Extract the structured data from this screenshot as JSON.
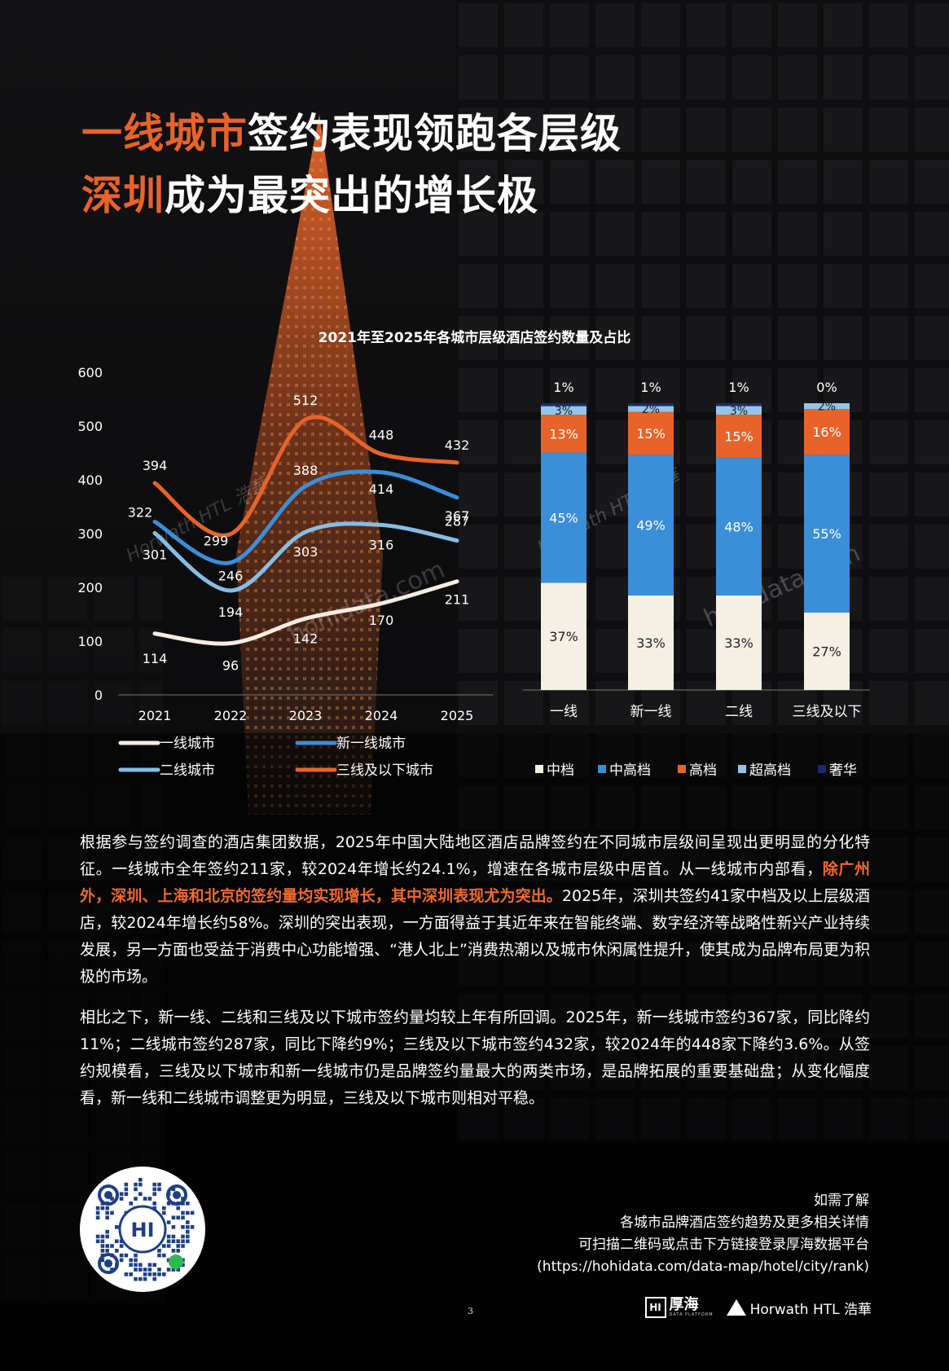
{
  "title": {
    "line1_highlight": "一线城市",
    "line1_rest": "签约表现领跑各层级",
    "line2_highlight": "深圳",
    "line2_rest": "成为最突出的增长极"
  },
  "colors": {
    "accent": "#e8632a",
    "background": "#0b0b0c"
  },
  "chart_data": [
    {
      "type": "line",
      "title": "2021年至2025年各城市层级酒店签约数量及占比",
      "x": [
        "2021",
        "2022",
        "2023",
        "2024",
        "2025"
      ],
      "ylim": [
        0,
        600
      ],
      "yticks": [
        "0",
        "100",
        "200",
        "300",
        "400",
        "500",
        "600"
      ],
      "series": [
        {
          "name": "一线城市",
          "color": "#f5ede0",
          "values": [
            114,
            96,
            142,
            170,
            211
          ]
        },
        {
          "name": "新一线城市",
          "color": "#3b8ed8",
          "values": [
            322,
            246,
            388,
            414,
            367
          ]
        },
        {
          "name": "二线城市",
          "color": "#86bde6",
          "values": [
            301,
            194,
            303,
            316,
            287
          ]
        },
        {
          "name": "三线及以下城市",
          "color": "#e8632a",
          "values": [
            394,
            299,
            512,
            448,
            432
          ]
        }
      ],
      "legend_position": "bottom"
    },
    {
      "type": "bar",
      "stacked": true,
      "categories": [
        "一线",
        "新一线",
        "二线",
        "三线及以下"
      ],
      "series": [
        {
          "name": "中档",
          "color": "#f5efe4",
          "values": [
            37,
            33,
            33,
            27
          ],
          "labels": [
            "37%",
            "33%",
            "33%",
            "27%"
          ]
        },
        {
          "name": "中高档",
          "color": "#3b8ed8",
          "values": [
            45,
            49,
            48,
            55
          ],
          "labels": [
            "45%",
            "49%",
            "48%",
            "55%"
          ]
        },
        {
          "name": "高档",
          "color": "#e8632a",
          "values": [
            13,
            15,
            15,
            16
          ],
          "labels": [
            "13%",
            "15%",
            "15%",
            "16%"
          ]
        },
        {
          "name": "超高档",
          "color": "#93c5ea",
          "values": [
            3,
            2,
            3,
            2
          ],
          "labels": [
            "3%",
            "2%",
            "3%",
            "2%"
          ]
        },
        {
          "name": "奢华",
          "color": "#1d2a6e",
          "values": [
            1,
            1,
            1,
            0
          ],
          "labels": [
            "1%",
            "1%",
            "1%",
            "0%"
          ]
        }
      ],
      "legend_position": "bottom"
    }
  ],
  "body": {
    "p1_a": "根据参与签约调查的酒店集团数据，2025年中国大陆地区酒店品牌签约在不同城市层级间呈现出更明显的分化特征。一线城市全年签约211家，较2024年增长约24.1%，增速在各城市层级中居首。从一线城市内部看，",
    "p1_highlight": "除广州外，深圳、上海和北京的签约量均实现增长，其中深圳表现尤为突出。",
    "p1_b": "2025年，深圳共签约41家中档及以上层级酒店，较2024年增长约58%。深圳的突出表现，一方面得益于其近年来在智能终端、数字经济等战略性新兴产业持续发展，另一方面也受益于消费中心功能增强、“港人北上”消费热潮以及城市休闲属性提升，使其成为品牌布局更为积极的市场。",
    "p2": "相比之下，新一线、二线和三线及以下城市签约量均较上年有所回调。2025年，新一线城市签约367家，同比降约11%；二线城市签约287家，同比下降约9%；三线及以下城市签约432家，较2024年的448家下降约3.6%。从签约规模看，三线及以下城市和新一线城市仍是品牌签约量最大的两类市场，是品牌拓展的重要基础盘；从变化幅度看，新一线和二线城市调整更为明显，三线及以下城市则相对平稳。"
  },
  "qr_note": {
    "line1": "如需了解",
    "line2": "各城市品牌酒店签约趋势及更多相关详情",
    "line3": "可扫描二维码或点击下方链接登录厚海数据平台",
    "line4": "(https://hohidata.com/data-map/hotel/city/rank)"
  },
  "page_number": "3",
  "logos": {
    "hohi_mark": "HI",
    "hohi_name": "厚海",
    "hohi_sub": "DATA PLATFORM",
    "horwath": "Horwath HTL 浩華"
  },
  "watermarks": [
    "Horwath HTL 浩華",
    "hohidata.com"
  ]
}
